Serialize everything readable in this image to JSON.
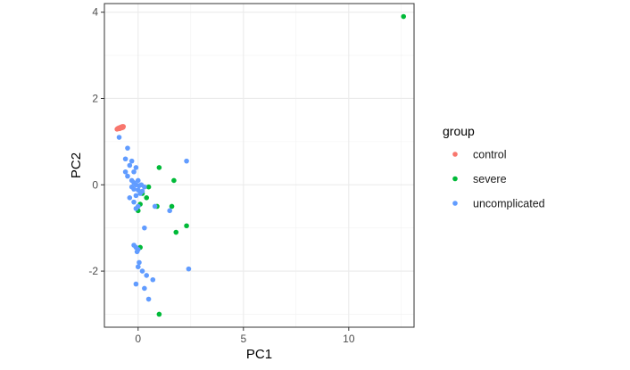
{
  "chart_data": {
    "type": "scatter",
    "title": "",
    "xlabel": "PC1",
    "ylabel": "PC2",
    "xlim": [
      -1.6,
      13.1
    ],
    "ylim": [
      -3.3,
      4.2
    ],
    "x_ticks": [
      0,
      5,
      10
    ],
    "y_ticks": [
      -2,
      0,
      2,
      4
    ],
    "grid": true,
    "legend": {
      "title": "group",
      "position": "right"
    },
    "series": [
      {
        "name": "control",
        "color": "#F8766D",
        "points": [
          [
            -1.0,
            1.29
          ],
          [
            -0.95,
            1.31
          ],
          [
            -0.9,
            1.32
          ],
          [
            -0.85,
            1.33
          ],
          [
            -0.8,
            1.34
          ],
          [
            -0.75,
            1.35
          ],
          [
            -0.7,
            1.35
          ],
          [
            -0.88,
            1.3
          ],
          [
            -0.78,
            1.32
          ],
          [
            -0.72,
            1.33
          ]
        ]
      },
      {
        "name": "severe",
        "color": "#00BA38",
        "points": [
          [
            12.6,
            3.9
          ],
          [
            1.0,
            0.4
          ],
          [
            1.7,
            0.1
          ],
          [
            0.5,
            -0.05
          ],
          [
            0.2,
            -0.2
          ],
          [
            0.4,
            -0.3
          ],
          [
            0.1,
            -0.45
          ],
          [
            0.9,
            -0.5
          ],
          [
            1.6,
            -0.5
          ],
          [
            2.3,
            -0.95
          ],
          [
            1.8,
            -1.1
          ],
          [
            0.1,
            -1.45
          ],
          [
            1.0,
            -3.0
          ],
          [
            0.0,
            -0.6
          ]
        ]
      },
      {
        "name": "uncomplicated",
        "color": "#619CFF",
        "points": [
          [
            -0.9,
            1.1
          ],
          [
            -0.5,
            0.85
          ],
          [
            -0.6,
            0.6
          ],
          [
            -0.3,
            0.55
          ],
          [
            -0.4,
            0.45
          ],
          [
            -0.1,
            0.4
          ],
          [
            -0.2,
            0.3
          ],
          [
            -0.6,
            0.3
          ],
          [
            -0.5,
            0.2
          ],
          [
            -0.3,
            0.1
          ],
          [
            0.0,
            0.1
          ],
          [
            -0.2,
            0.05
          ],
          [
            -0.1,
            0.0
          ],
          [
            0.05,
            -0.02
          ],
          [
            0.15,
            0.0
          ],
          [
            -0.3,
            -0.05
          ],
          [
            0.3,
            -0.05
          ],
          [
            -0.2,
            -0.1
          ],
          [
            0.0,
            -0.12
          ],
          [
            0.2,
            -0.15
          ],
          [
            0.1,
            -0.2
          ],
          [
            -0.1,
            -0.25
          ],
          [
            -0.4,
            -0.3
          ],
          [
            -0.2,
            -0.4
          ],
          [
            0.0,
            -0.5
          ],
          [
            -0.1,
            -0.55
          ],
          [
            2.3,
            0.55
          ],
          [
            1.5,
            -0.6
          ],
          [
            0.8,
            -0.5
          ],
          [
            0.3,
            -1.0
          ],
          [
            -0.2,
            -1.4
          ],
          [
            -0.1,
            -1.45
          ],
          [
            0.0,
            -1.5
          ],
          [
            -0.05,
            -1.55
          ],
          [
            0.05,
            -1.8
          ],
          [
            0.0,
            -1.9
          ],
          [
            0.2,
            -2.0
          ],
          [
            0.4,
            -2.1
          ],
          [
            0.7,
            -2.2
          ],
          [
            -0.1,
            -2.3
          ],
          [
            0.3,
            -2.4
          ],
          [
            2.4,
            -1.95
          ],
          [
            0.5,
            -2.65
          ]
        ]
      }
    ]
  }
}
